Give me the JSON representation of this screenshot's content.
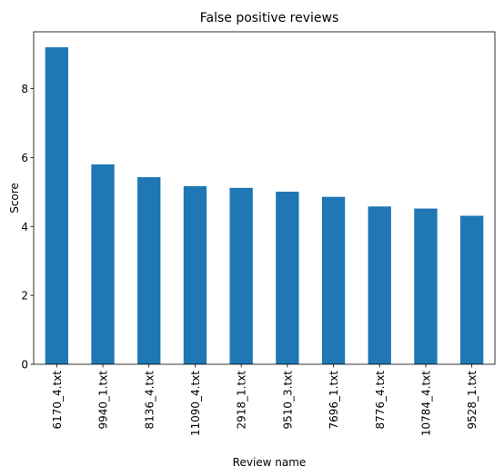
{
  "chart_data": {
    "type": "bar",
    "title": "False positive reviews",
    "xlabel": "Review name",
    "ylabel": "Score",
    "categories": [
      "6170_4.txt",
      "9940_1.txt",
      "8136_4.txt",
      "11090_4.txt",
      "2918_1.txt",
      "9510_3.txt",
      "7696_1.txt",
      "8776_4.txt",
      "10784_4.txt",
      "9528_1.txt"
    ],
    "values": [
      9.2,
      5.8,
      5.43,
      5.17,
      5.12,
      5.01,
      4.86,
      4.58,
      4.52,
      4.31
    ],
    "ylim": [
      0,
      9.65
    ],
    "yticks": [
      0,
      2,
      4,
      6,
      8
    ],
    "grid": false,
    "bar_color": "#1f77b4"
  }
}
